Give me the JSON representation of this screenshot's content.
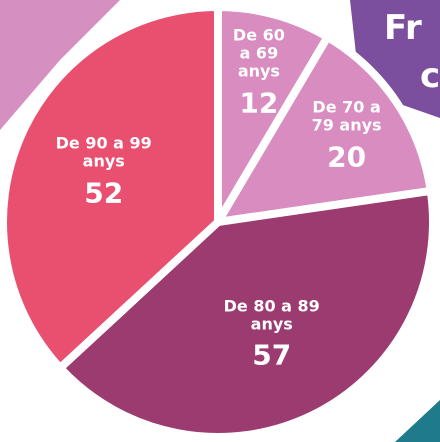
{
  "chart_data": {
    "type": "pie",
    "title": "Fr",
    "subtitle": "c",
    "categories": [
      "De 60 a 69 anys",
      "De 70 a 79 anys",
      "De 80 a 89 anys",
      "De 90 a 99 anys"
    ],
    "values": [
      12,
      20,
      57,
      52
    ],
    "colors": [
      "#d98cbf",
      "#d98cbf",
      "#9c3b6f",
      "#e9506f"
    ]
  }
}
